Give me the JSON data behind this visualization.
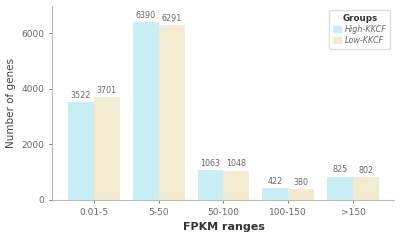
{
  "categories": [
    "0.01-5",
    "5-50",
    "50-100",
    "100-150",
    ">150"
  ],
  "high_kkcf": [
    3522,
    6390,
    1063,
    422,
    825
  ],
  "low_kkcf": [
    3701,
    6291,
    1048,
    380,
    802
  ],
  "high_color": "#c8eef5",
  "low_color": "#f2ebd0",
  "ylabel": "Number of genes",
  "xlabel": "FPKM ranges",
  "ylim": [
    0,
    7000
  ],
  "yticks": [
    0,
    2000,
    4000,
    6000
  ],
  "legend_title": "Groups",
  "legend_labels": [
    "High-KKCF",
    "Low-KKCF"
  ],
  "bar_width": 0.4,
  "label_fontsize": 5.8,
  "axis_label_fontsize": 7.5,
  "tick_fontsize": 6.5,
  "background_color": "#ffffff",
  "spine_color": "#bbbbbb",
  "text_color": "#666666",
  "xlabel_fontsize": 8.0
}
